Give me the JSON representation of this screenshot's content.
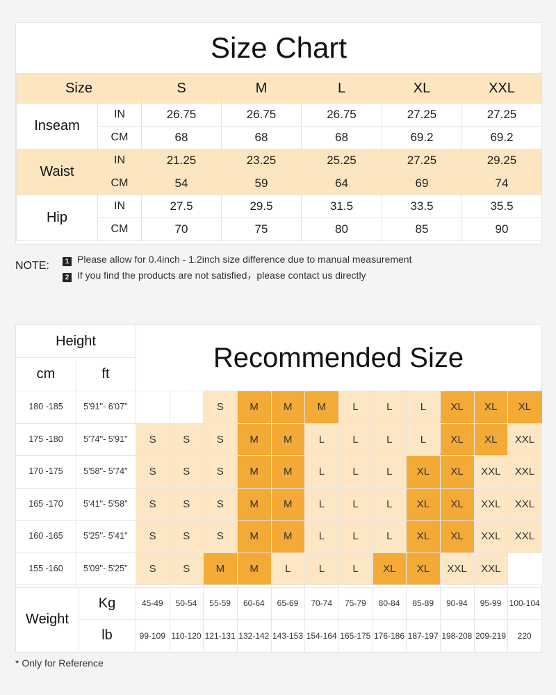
{
  "size_chart": {
    "title": "Size Chart",
    "header_label": "Size",
    "sizes": [
      "S",
      "M",
      "L",
      "XL",
      "XXL"
    ],
    "rows": [
      {
        "measure": "Inseam",
        "units": [
          {
            "unit": "IN",
            "values": [
              "26.75",
              "26.75",
              "26.75",
              "27.25",
              "27.25"
            ]
          },
          {
            "unit": "CM",
            "values": [
              "68",
              "68",
              "68",
              "69.2",
              "69.2"
            ]
          }
        ]
      },
      {
        "measure": "Waist",
        "units": [
          {
            "unit": "IN",
            "values": [
              "21.25",
              "23.25",
              "25.25",
              "27.25",
              "29.25"
            ]
          },
          {
            "unit": "CM",
            "values": [
              "54",
              "59",
              "64",
              "69",
              "74"
            ]
          }
        ]
      },
      {
        "measure": "Hip",
        "units": [
          {
            "unit": "IN",
            "values": [
              "27.5",
              "29.5",
              "31.5",
              "33.5",
              "35.5"
            ]
          },
          {
            "unit": "CM",
            "values": [
              "70",
              "75",
              "80",
              "85",
              "90"
            ]
          }
        ]
      }
    ]
  },
  "note": {
    "label": "NOTE:",
    "items": [
      {
        "num": "1",
        "text": "Please allow for 0.4inch - 1.2inch size difference due to manual measurement"
      },
      {
        "num": "2",
        "text": "If you find the products are not satisfied，please contact us directly"
      }
    ]
  },
  "recommended": {
    "title": "Recommended Size",
    "height_label": "Height",
    "cm_label": "cm",
    "ft_label": "ft",
    "weight_label": "Weight",
    "kg_label": "Kg",
    "lb_label": "lb",
    "rows": [
      {
        "cm": "180 -185",
        "ft": "5'91''- 6'07''",
        "sizes": [
          "",
          "",
          "S",
          "M",
          "M",
          "M",
          "L",
          "L",
          "L",
          "XL",
          "XL",
          "XL"
        ]
      },
      {
        "cm": "175 -180",
        "ft": "5'74''- 5'91''",
        "sizes": [
          "S",
          "S",
          "S",
          "M",
          "M",
          "L",
          "L",
          "L",
          "L",
          "XL",
          "XL",
          "XXL"
        ]
      },
      {
        "cm": "170 -175",
        "ft": "5'58''- 5'74''",
        "sizes": [
          "S",
          "S",
          "S",
          "M",
          "M",
          "L",
          "L",
          "L",
          "XL",
          "XL",
          "XXL",
          "XXL"
        ]
      },
      {
        "cm": "165 -170",
        "ft": "5'41''- 5'58''",
        "sizes": [
          "S",
          "S",
          "S",
          "M",
          "M",
          "L",
          "L",
          "L",
          "XL",
          "XL",
          "XXL",
          "XXL"
        ]
      },
      {
        "cm": "160 -165",
        "ft": "5'25''- 5'41''",
        "sizes": [
          "S",
          "S",
          "S",
          "M",
          "M",
          "L",
          "L",
          "L",
          "XL",
          "XL",
          "XXL",
          "XXL"
        ]
      },
      {
        "cm": "155 -160",
        "ft": "5'09''- 5'25''",
        "sizes": [
          "S",
          "S",
          "M",
          "M",
          "L",
          "L",
          "L",
          "XL",
          "XL",
          "XXL",
          "XXL",
          ""
        ]
      }
    ],
    "shading": [
      [
        "w",
        "w",
        "lt",
        "dk",
        "dk",
        "dk",
        "lt",
        "lt",
        "lt",
        "dk",
        "dk",
        "dk"
      ],
      [
        "lt",
        "lt",
        "lt",
        "dk",
        "dk",
        "lt",
        "lt",
        "lt",
        "lt",
        "dk",
        "dk",
        "lt"
      ],
      [
        "lt",
        "lt",
        "lt",
        "dk",
        "dk",
        "lt",
        "lt",
        "lt",
        "dk",
        "dk",
        "lt",
        "lt"
      ],
      [
        "lt",
        "lt",
        "lt",
        "dk",
        "dk",
        "lt",
        "lt",
        "lt",
        "dk",
        "dk",
        "lt",
        "lt"
      ],
      [
        "lt",
        "lt",
        "lt",
        "dk",
        "dk",
        "lt",
        "lt",
        "lt",
        "dk",
        "dk",
        "lt",
        "lt"
      ],
      [
        "lt",
        "lt",
        "dk",
        "dk",
        "lt",
        "lt",
        "lt",
        "dk",
        "dk",
        "lt",
        "lt",
        "w"
      ]
    ],
    "kg": [
      "45-49",
      "50-54",
      "55-59",
      "60-64",
      "65-69",
      "70-74",
      "75-79",
      "80-84",
      "85-89",
      "90-94",
      "95-99",
      "100-104"
    ],
    "lb": [
      "99-109",
      "110-120",
      "121-131",
      "132-142",
      "143-153",
      "154-164",
      "165-175",
      "176-186",
      "187-197",
      "198-208",
      "209-219",
      "220"
    ]
  },
  "footnote": "* Only for Reference",
  "colors": {
    "light_band": "#fde6c3",
    "accent": "#f4aa37",
    "header_band": "#fde6bf"
  }
}
